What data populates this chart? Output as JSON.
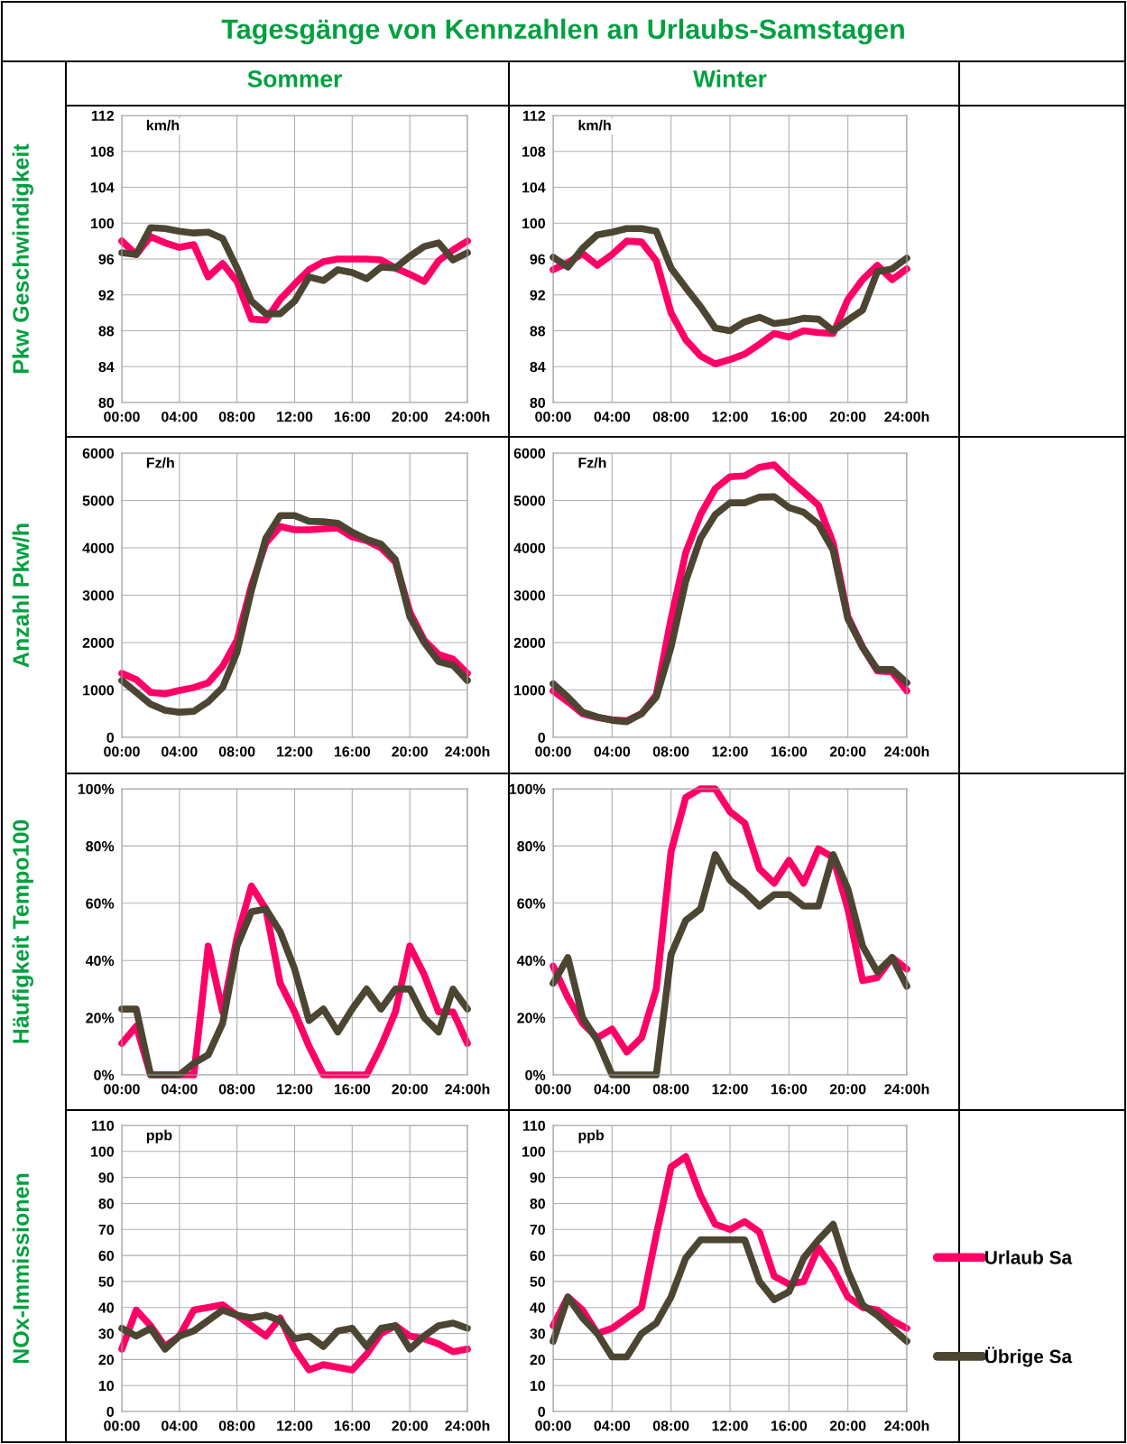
{
  "chart_data": [
    {
      "type": "line",
      "title": "Sommer",
      "ylabel": "Pkw Geschwindigkeit",
      "annotations": [
        "km/h",
        "Tagesgänge von Kennzahlen an Urlaubs-Samstagen"
      ],
      "x": [
        0,
        1,
        2,
        3,
        4,
        5,
        6,
        7,
        8,
        9,
        10,
        11,
        12,
        13,
        14,
        15,
        16,
        17,
        18,
        19,
        20,
        21,
        22,
        23,
        24
      ],
      "xlim": [
        0,
        24
      ],
      "xticks": [
        {
          "value": 0,
          "label": "00:00"
        },
        {
          "value": 4,
          "label": "04:00"
        },
        {
          "value": 8,
          "label": "08:00"
        },
        {
          "value": 12,
          "label": "12:00"
        },
        {
          "value": 16,
          "label": "16:00"
        },
        {
          "value": 20,
          "label": "20:00"
        },
        {
          "value": 24,
          "label": "24:00h"
        }
      ],
      "ylim": [
        80,
        112
      ],
      "yticks": [
        80,
        84,
        88,
        92,
        96,
        100,
        104,
        108,
        112
      ],
      "grid": true,
      "line_style": "solid",
      "marker": "none",
      "series": [
        {
          "color": "#ff0066",
          "values": [
            98,
            96.5,
            98.5,
            97.8,
            97.3,
            97.6,
            94,
            95.5,
            93.5,
            89.3,
            89.2,
            91.5,
            93.2,
            94.8,
            95.7,
            96,
            96,
            96,
            95.9,
            95,
            94.3,
            93.5,
            95.8,
            97,
            98
          ]
        },
        {
          "color": "#4b4532",
          "values": [
            96.7,
            96.5,
            99.5,
            99.4,
            99.1,
            98.9,
            99,
            98.3,
            95,
            91.3,
            89.9,
            89.9,
            91.3,
            94,
            93.6,
            94.8,
            94.5,
            93.8,
            95.1,
            95,
            96.3,
            97.4,
            97.8,
            95.9,
            96.7
          ]
        }
      ]
    },
    {
      "type": "line",
      "title": "Winter",
      "annotations": [
        "km/h"
      ],
      "x": [
        0,
        1,
        2,
        3,
        4,
        5,
        6,
        7,
        8,
        9,
        10,
        11,
        12,
        13,
        14,
        15,
        16,
        17,
        18,
        19,
        20,
        21,
        22,
        23,
        24
      ],
      "xlim": [
        0,
        24
      ],
      "xticks": [
        {
          "value": 0,
          "label": "00:00"
        },
        {
          "value": 4,
          "label": "04:00"
        },
        {
          "value": 8,
          "label": "08:00"
        },
        {
          "value": 12,
          "label": "12:00"
        },
        {
          "value": 16,
          "label": "16:00"
        },
        {
          "value": 20,
          "label": "20:00"
        },
        {
          "value": 24,
          "label": "24:00h"
        }
      ],
      "ylim": [
        80,
        112
      ],
      "yticks": [
        80,
        84,
        88,
        92,
        96,
        100,
        104,
        108,
        112
      ],
      "grid": true,
      "line_style": "solid",
      "marker": "none",
      "series": [
        {
          "color": "#ff0066",
          "values": [
            94.8,
            95.6,
            96.6,
            95.3,
            96.5,
            98,
            97.9,
            95.8,
            90,
            87,
            85.2,
            84.3,
            84.8,
            85.4,
            86.5,
            87.7,
            87.3,
            88,
            87.8,
            87.7,
            91.5,
            93.7,
            95.3,
            93.7,
            94.9
          ]
        },
        {
          "color": "#4b4532",
          "values": [
            96.2,
            95.1,
            97.2,
            98.7,
            99,
            99.4,
            99.4,
            99.1,
            95,
            92.8,
            90.7,
            88.3,
            88,
            89,
            89.5,
            88.8,
            89,
            89.4,
            89.3,
            88,
            89.2,
            90.3,
            94.6,
            94.9,
            96.1
          ]
        }
      ]
    },
    {
      "type": "line",
      "ylabel": "Anzahl Pkw/h",
      "annotations": [
        "Fz/h"
      ],
      "x": [
        0,
        1,
        2,
        3,
        4,
        5,
        6,
        7,
        8,
        9,
        10,
        11,
        12,
        13,
        14,
        15,
        16,
        17,
        18,
        19,
        20,
        21,
        22,
        23,
        24
      ],
      "xlim": [
        0,
        24
      ],
      "xticks": [
        {
          "value": 0,
          "label": "00:00"
        },
        {
          "value": 4,
          "label": "04:00"
        },
        {
          "value": 8,
          "label": "08:00"
        },
        {
          "value": 12,
          "label": "12:00"
        },
        {
          "value": 16,
          "label": "16:00"
        },
        {
          "value": 20,
          "label": "20:00"
        },
        {
          "value": 24,
          "label": "24:00h"
        }
      ],
      "ylim": [
        0,
        6000
      ],
      "yticks": [
        0,
        1000,
        2000,
        3000,
        4000,
        5000,
        6000
      ],
      "grid": true,
      "line_style": "solid",
      "marker": "none",
      "series": [
        {
          "color": "#ff0066",
          "values": [
            1350,
            1220,
            950,
            920,
            990,
            1050,
            1150,
            1500,
            2050,
            3200,
            4100,
            4450,
            4380,
            4380,
            4400,
            4420,
            4230,
            4150,
            4000,
            3700,
            2650,
            2050,
            1750,
            1650,
            1350
          ]
        },
        {
          "color": "#4b4532",
          "values": [
            1200,
            950,
            700,
            570,
            530,
            550,
            750,
            1050,
            1800,
            3100,
            4200,
            4680,
            4680,
            4560,
            4550,
            4520,
            4330,
            4180,
            4080,
            3750,
            2550,
            2000,
            1600,
            1520,
            1200
          ]
        }
      ]
    },
    {
      "type": "line",
      "annotations": [
        "Fz/h"
      ],
      "x": [
        0,
        1,
        2,
        3,
        4,
        5,
        6,
        7,
        8,
        9,
        10,
        11,
        12,
        13,
        14,
        15,
        16,
        17,
        18,
        19,
        20,
        21,
        22,
        23,
        24
      ],
      "xlim": [
        0,
        24
      ],
      "xticks": [
        {
          "value": 0,
          "label": "00:00"
        },
        {
          "value": 4,
          "label": "04:00"
        },
        {
          "value": 8,
          "label": "08:00"
        },
        {
          "value": 12,
          "label": "12:00"
        },
        {
          "value": 16,
          "label": "16:00"
        },
        {
          "value": 20,
          "label": "20:00"
        },
        {
          "value": 24,
          "label": "24:00h"
        }
      ],
      "ylim": [
        0,
        6000
      ],
      "yticks": [
        0,
        1000,
        2000,
        3000,
        4000,
        5000,
        6000
      ],
      "grid": true,
      "line_style": "solid",
      "marker": "none",
      "series": [
        {
          "color": "#ff0066",
          "values": [
            980,
            750,
            500,
            420,
            370,
            350,
            500,
            900,
            2500,
            3900,
            4700,
            5250,
            5500,
            5520,
            5700,
            5750,
            5450,
            5180,
            4900,
            4100,
            2550,
            1900,
            1400,
            1380,
            980
          ]
        },
        {
          "color": "#4b4532",
          "values": [
            1130,
            850,
            530,
            430,
            360,
            330,
            500,
            850,
            1900,
            3300,
            4200,
            4700,
            4950,
            4950,
            5070,
            5080,
            4850,
            4750,
            4500,
            3950,
            2500,
            1900,
            1430,
            1430,
            1150
          ]
        }
      ]
    },
    {
      "type": "line",
      "ylabel": "Häufigkeit Tempo100",
      "x": [
        0,
        1,
        2,
        3,
        4,
        5,
        6,
        7,
        8,
        9,
        10,
        11,
        12,
        13,
        14,
        15,
        16,
        17,
        18,
        19,
        20,
        21,
        22,
        23,
        24
      ],
      "xlim": [
        0,
        24
      ],
      "xticks": [
        {
          "value": 0,
          "label": "00:00"
        },
        {
          "value": 4,
          "label": "04:00"
        },
        {
          "value": 8,
          "label": "08:00"
        },
        {
          "value": 12,
          "label": "12:00"
        },
        {
          "value": 16,
          "label": "16:00"
        },
        {
          "value": 20,
          "label": "20:00"
        },
        {
          "value": 24,
          "label": "24:00h"
        }
      ],
      "ylim": [
        0,
        100
      ],
      "yticks": [
        {
          "value": 0,
          "label": "0%"
        },
        {
          "value": 20,
          "label": "20%"
        },
        {
          "value": 40,
          "label": "40%"
        },
        {
          "value": 60,
          "label": "60%"
        },
        {
          "value": 80,
          "label": "80%"
        },
        {
          "value": 100,
          "label": "100%"
        }
      ],
      "grid": true,
      "line_style": "solid",
      "marker": "none",
      "series": [
        {
          "color": "#ff0066",
          "values": [
            11,
            17,
            0,
            0,
            0,
            0,
            45,
            22,
            48,
            66,
            58,
            32,
            22,
            10,
            0,
            0,
            0,
            0,
            10,
            22,
            45,
            35,
            22,
            22,
            11
          ]
        },
        {
          "color": "#4b4532",
          "values": [
            23,
            23,
            0,
            0,
            0,
            4,
            7,
            18,
            45,
            57,
            58,
            50,
            37,
            19,
            23,
            15,
            23,
            30,
            23,
            30,
            30,
            20,
            15,
            30,
            23
          ]
        }
      ]
    },
    {
      "type": "line",
      "x": [
        0,
        1,
        2,
        3,
        4,
        5,
        6,
        7,
        8,
        9,
        10,
        11,
        12,
        13,
        14,
        15,
        16,
        17,
        18,
        19,
        20,
        21,
        22,
        23,
        24
      ],
      "xlim": [
        0,
        24
      ],
      "xticks": [
        {
          "value": 0,
          "label": "00:00"
        },
        {
          "value": 4,
          "label": "04:00"
        },
        {
          "value": 8,
          "label": "08:00"
        },
        {
          "value": 12,
          "label": "12:00"
        },
        {
          "value": 16,
          "label": "16:00"
        },
        {
          "value": 20,
          "label": "20:00"
        },
        {
          "value": 24,
          "label": "24:00h"
        }
      ],
      "ylim": [
        0,
        100
      ],
      "yticks": [
        {
          "value": 0,
          "label": "0%"
        },
        {
          "value": 20,
          "label": "20%"
        },
        {
          "value": 40,
          "label": "40%"
        },
        {
          "value": 60,
          "label": "60%"
        },
        {
          "value": 80,
          "label": "80%"
        },
        {
          "value": 100,
          "label": "100%"
        }
      ],
      "grid": true,
      "line_style": "solid",
      "marker": "none",
      "series": [
        {
          "color": "#ff0066",
          "values": [
            38,
            27,
            18,
            13,
            16,
            8,
            13,
            30,
            78,
            97,
            100,
            100,
            92,
            88,
            72,
            67,
            75,
            67,
            79,
            76,
            58,
            33,
            34,
            41,
            37
          ]
        },
        {
          "color": "#4b4532",
          "values": [
            32,
            41,
            20,
            12,
            0,
            0,
            0,
            0,
            42,
            54,
            58,
            77,
            68,
            64,
            59,
            63,
            63,
            59,
            59,
            77,
            65,
            45,
            36,
            41,
            31
          ]
        }
      ]
    },
    {
      "type": "line",
      "ylabel": "NOx-Immissionen",
      "annotations": [
        "ppb"
      ],
      "x": [
        0,
        1,
        2,
        3,
        4,
        5,
        6,
        7,
        8,
        9,
        10,
        11,
        12,
        13,
        14,
        15,
        16,
        17,
        18,
        19,
        20,
        21,
        22,
        23,
        24
      ],
      "xlim": [
        0,
        24
      ],
      "xticks": [
        {
          "value": 0,
          "label": "00:00"
        },
        {
          "value": 4,
          "label": "04:00"
        },
        {
          "value": 8,
          "label": "08:00"
        },
        {
          "value": 12,
          "label": "12:00"
        },
        {
          "value": 16,
          "label": "16:00"
        },
        {
          "value": 20,
          "label": "20:00"
        },
        {
          "value": 24,
          "label": "24:00h"
        }
      ],
      "ylim": [
        0,
        110
      ],
      "yticks": [
        0,
        10,
        20,
        30,
        40,
        50,
        60,
        70,
        80,
        90,
        100,
        110
      ],
      "grid": true,
      "line_style": "solid",
      "marker": "none",
      "series": [
        {
          "color": "#ff0066",
          "values": [
            24,
            39,
            33,
            25,
            29,
            39,
            40,
            41,
            37,
            33,
            29,
            36,
            24,
            16,
            18,
            17,
            16,
            22,
            30,
            33,
            29,
            28,
            26,
            23,
            24
          ]
        },
        {
          "color": "#4b4532",
          "values": [
            32,
            29,
            32,
            24,
            29,
            31,
            35,
            39,
            37,
            36,
            37,
            35,
            28,
            29,
            25,
            31,
            32,
            25,
            32,
            33,
            24,
            29,
            33,
            34,
            32
          ]
        }
      ]
    },
    {
      "type": "line",
      "annotations": [
        "ppb"
      ],
      "legend": "right",
      "x": [
        0,
        1,
        2,
        3,
        4,
        5,
        6,
        7,
        8,
        9,
        10,
        11,
        12,
        13,
        14,
        15,
        16,
        17,
        18,
        19,
        20,
        21,
        22,
        23,
        24
      ],
      "xlim": [
        0,
        24
      ],
      "xticks": [
        {
          "value": 0,
          "label": "00:00"
        },
        {
          "value": 4,
          "label": "04:00"
        },
        {
          "value": 8,
          "label": "08:00"
        },
        {
          "value": 12,
          "label": "12:00"
        },
        {
          "value": 16,
          "label": "16:00"
        },
        {
          "value": 20,
          "label": "20:00"
        },
        {
          "value": 24,
          "label": "24:00h"
        }
      ],
      "ylim": [
        0,
        110
      ],
      "yticks": [
        0,
        10,
        20,
        30,
        40,
        50,
        60,
        70,
        80,
        90,
        100,
        110
      ],
      "grid": true,
      "line_style": "solid",
      "marker": "none",
      "series": [
        {
          "name": "Urlaub Sa",
          "color": "#ff0066",
          "values": [
            33,
            44,
            39,
            30,
            32,
            36,
            40,
            68,
            94,
            98,
            83,
            72,
            70,
            73,
            69,
            52,
            49,
            50,
            63,
            55,
            44,
            40,
            39,
            35,
            32
          ]
        },
        {
          "name": "Übrige Sa",
          "color": "#4b4532",
          "values": [
            27,
            44,
            36,
            30,
            21,
            21,
            30,
            34,
            44,
            59,
            66,
            66,
            66,
            66,
            50,
            43,
            46,
            59,
            66,
            72,
            54,
            41,
            37,
            32,
            27
          ]
        }
      ]
    }
  ]
}
